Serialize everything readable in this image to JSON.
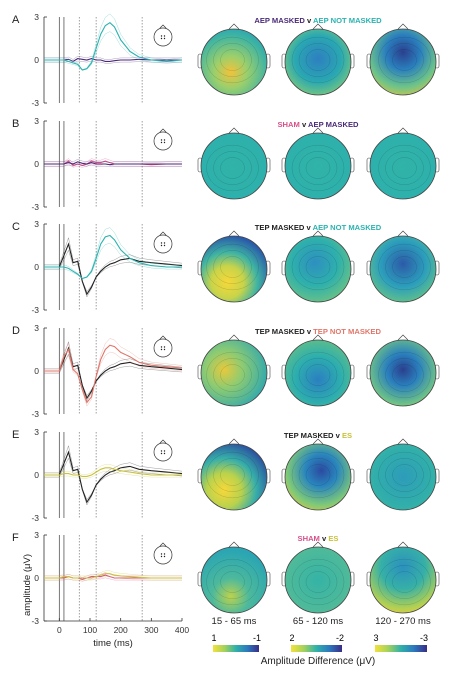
{
  "panels": [
    {
      "letter": "A",
      "title_parts": [
        {
          "text": "AEP MASKED",
          "color": "#4a2a78"
        },
        {
          "text": " v ",
          "color": "#222222"
        },
        {
          "text": "AEP NOT MASKED",
          "color": "#2ab3b0"
        }
      ]
    },
    {
      "letter": "B",
      "title_parts": [
        {
          "text": "SHAM",
          "color": "#d6508a"
        },
        {
          "text": " v ",
          "color": "#222222"
        },
        {
          "text": "AEP MASKED",
          "color": "#4a2a78"
        }
      ]
    },
    {
      "letter": "C",
      "title_parts": [
        {
          "text": "TEP MASKED",
          "color": "#222222"
        },
        {
          "text": " v ",
          "color": "#222222"
        },
        {
          "text": "AEP NOT MASKED",
          "color": "#2ab3b0"
        }
      ]
    },
    {
      "letter": "D",
      "title_parts": [
        {
          "text": "TEP MASKED",
          "color": "#222222"
        },
        {
          "text": " v ",
          "color": "#222222"
        },
        {
          "text": "TEP NOT MASKED",
          "color": "#e0766a"
        }
      ]
    },
    {
      "letter": "E",
      "title_parts": [
        {
          "text": "TEP MASKED",
          "color": "#222222"
        },
        {
          "text": " v ",
          "color": "#222222"
        },
        {
          "text": "ES",
          "color": "#c9c23a"
        }
      ]
    },
    {
      "letter": "F",
      "title_parts": [
        {
          "text": "SHAM",
          "color": "#d6508a"
        },
        {
          "text": " v ",
          "color": "#222222"
        },
        {
          "text": "ES",
          "color": "#c9c23a"
        }
      ]
    }
  ],
  "y_ticks": [
    "3",
    "0",
    "-3"
  ],
  "x_ticks": [
    "0",
    "100",
    "200",
    "300",
    "400"
  ],
  "x_label": "time (ms)",
  "y_label": "amplitude (μV)",
  "windows": [
    "15 - 65 ms",
    "65 - 120 ms",
    "120 - 270 ms"
  ],
  "colorbars": [
    {
      "low": "1",
      "high": "-1"
    },
    {
      "low": "2",
      "high": "-2"
    },
    {
      "low": "3",
      "high": "-3"
    }
  ],
  "colorbar_label": "Amplitude Difference (μV)",
  "colors": {
    "aep_masked": "#4a2a78",
    "aep_not_masked": "#2ab3b0",
    "sham": "#d6508a",
    "tep_masked": "#222222",
    "tep_not_masked": "#e0766a",
    "es": "#c9c23a"
  },
  "chart_data": [
    {
      "type": "line",
      "title": "",
      "xlabel": "",
      "ylabel": "",
      "xlim": [
        -50,
        400
      ],
      "ylim": [
        -3,
        3
      ],
      "x": [
        -50,
        0,
        15,
        30,
        45,
        60,
        75,
        90,
        105,
        120,
        135,
        150,
        165,
        180,
        200,
        230,
        260,
        300,
        350,
        400
      ],
      "series": [
        {
          "color": "#4a2a78",
          "values": [
            0,
            0,
            0,
            0.05,
            -0.1,
            0.1,
            0.05,
            0,
            0.1,
            0,
            0,
            -0.1,
            -0.1,
            -0.05,
            0,
            0,
            0.05,
            0,
            0,
            0
          ]
        },
        {
          "color": "#2ab3b0",
          "values": [
            0,
            0,
            0,
            -0.1,
            -0.2,
            -0.3,
            -0.7,
            -0.6,
            -0.2,
            0.8,
            1.8,
            2.4,
            2.6,
            2.3,
            1.4,
            0.6,
            0.2,
            0,
            -0.1,
            0
          ]
        }
      ]
    },
    {
      "type": "line",
      "title": "",
      "xlabel": "",
      "ylabel": "",
      "xlim": [
        -50,
        400
      ],
      "ylim": [
        -3,
        3
      ],
      "x": [
        -50,
        0,
        15,
        30,
        45,
        60,
        75,
        90,
        105,
        120,
        135,
        150,
        165,
        180,
        200,
        230,
        260,
        300,
        350,
        400
      ],
      "series": [
        {
          "color": "#d6508a",
          "values": [
            0,
            0,
            0,
            0.2,
            -0.1,
            0,
            -0.1,
            0,
            0.2,
            0.1,
            0.1,
            0.2,
            0.1,
            0,
            0,
            0,
            0,
            -0.05,
            0,
            0
          ]
        },
        {
          "color": "#4a2a78",
          "values": [
            0,
            0,
            0,
            0.1,
            0,
            0.15,
            0.05,
            0,
            0.1,
            0,
            0,
            0,
            -0.05,
            0,
            0,
            0,
            0,
            0,
            0,
            0
          ]
        }
      ]
    },
    {
      "type": "line",
      "title": "",
      "xlabel": "",
      "ylabel": "",
      "xlim": [
        -50,
        400
      ],
      "ylim": [
        -3,
        3
      ],
      "x": [
        -50,
        0,
        15,
        30,
        45,
        60,
        75,
        90,
        105,
        120,
        135,
        150,
        165,
        180,
        200,
        230,
        260,
        300,
        350,
        400
      ],
      "series": [
        {
          "color": "#222222",
          "values": [
            0,
            0,
            0.8,
            1.6,
            0.3,
            0.4,
            -1.0,
            -1.9,
            -1.4,
            -0.7,
            -0.3,
            0,
            0.2,
            0.3,
            0.5,
            0.6,
            0.4,
            0.3,
            0.2,
            0.1
          ]
        },
        {
          "color": "#2ab3b0",
          "values": [
            0,
            0,
            0,
            -0.1,
            -0.3,
            -0.5,
            -0.8,
            -0.7,
            -0.3,
            0.6,
            1.6,
            2.1,
            2.2,
            1.9,
            1.2,
            0.6,
            0.3,
            0.1,
            0,
            0
          ]
        }
      ]
    },
    {
      "type": "line",
      "title": "",
      "xlabel": "",
      "ylabel": "",
      "xlim": [
        -50,
        400
      ],
      "ylim": [
        -3,
        3
      ],
      "x": [
        -50,
        0,
        15,
        30,
        45,
        60,
        75,
        90,
        105,
        120,
        135,
        150,
        165,
        180,
        200,
        230,
        260,
        300,
        350,
        400
      ],
      "series": [
        {
          "color": "#222222",
          "values": [
            0,
            0,
            0.8,
            1.6,
            0.3,
            0.4,
            -1.0,
            -1.9,
            -1.4,
            -0.7,
            -0.3,
            0,
            0.2,
            0.3,
            0.5,
            0.6,
            0.4,
            0.3,
            0.2,
            0.1
          ]
        },
        {
          "color": "#e0766a",
          "values": [
            0,
            0,
            1.0,
            1.5,
            0.1,
            -0.2,
            -1.3,
            -2.2,
            -1.8,
            -0.4,
            0.8,
            1.5,
            1.8,
            1.7,
            1.3,
            1.0,
            0.6,
            0.4,
            0.3,
            0.2
          ]
        }
      ]
    },
    {
      "type": "line",
      "title": "",
      "xlabel": "",
      "ylabel": "",
      "xlim": [
        -50,
        400
      ],
      "ylim": [
        -3,
        3
      ],
      "x": [
        -50,
        0,
        15,
        30,
        45,
        60,
        75,
        90,
        105,
        120,
        135,
        150,
        165,
        180,
        200,
        230,
        260,
        300,
        350,
        400
      ],
      "series": [
        {
          "color": "#222222",
          "values": [
            0,
            0,
            0.8,
            1.6,
            0.3,
            0.4,
            -1.0,
            -1.9,
            -1.4,
            -0.7,
            -0.3,
            0,
            0.2,
            0.3,
            0.5,
            0.6,
            0.4,
            0.3,
            0.2,
            0.1
          ]
        },
        {
          "color": "#c9c23a",
          "values": [
            0,
            0,
            0.1,
            0.1,
            0,
            0,
            -0.1,
            -0.1,
            0,
            0.2,
            0.4,
            0.5,
            0.5,
            0.4,
            0.3,
            0.2,
            0.1,
            0,
            0,
            0
          ]
        }
      ]
    },
    {
      "type": "line",
      "title": "",
      "xlabel": "",
      "ylabel": "",
      "xlim": [
        -50,
        400
      ],
      "ylim": [
        -3,
        3
      ],
      "x": [
        -50,
        0,
        15,
        30,
        45,
        60,
        75,
        90,
        105,
        120,
        135,
        150,
        165,
        180,
        200,
        230,
        260,
        300,
        350,
        400
      ],
      "series": [
        {
          "color": "#d6508a",
          "values": [
            0,
            0,
            0,
            0.1,
            0,
            0,
            -0.1,
            0,
            0.1,
            0.1,
            0.1,
            0.2,
            0.1,
            0,
            0,
            0,
            0,
            0,
            0,
            0
          ]
        },
        {
          "color": "#c9c23a",
          "values": [
            0,
            0,
            0.1,
            0.1,
            0,
            0,
            0,
            0,
            0,
            0.1,
            0.2,
            0.3,
            0.3,
            0.2,
            0.15,
            0.1,
            0.05,
            0,
            0,
            0
          ]
        }
      ]
    }
  ]
}
